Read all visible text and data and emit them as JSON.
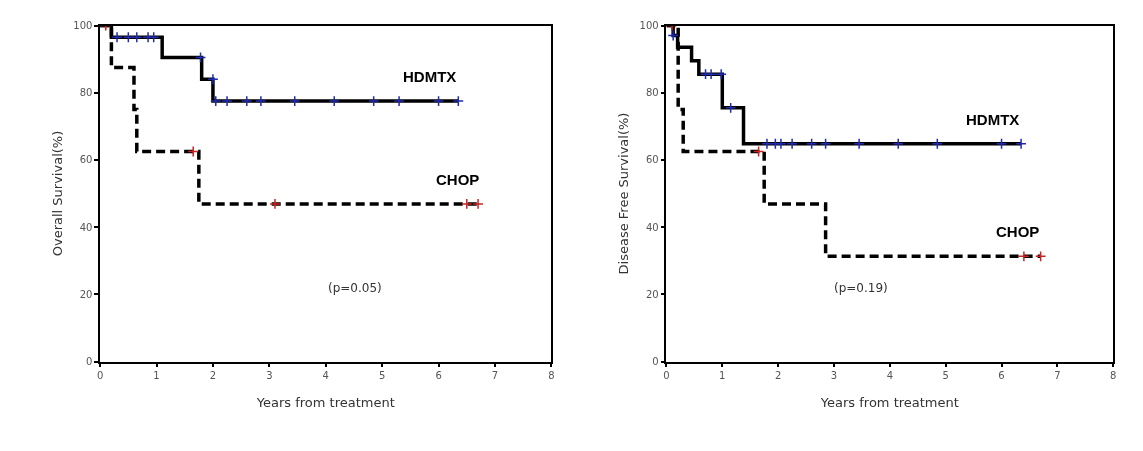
{
  "chart_data": [
    {
      "type": "step",
      "xlabel": "Years from treatment",
      "ylabel": "Overall Survival(%)",
      "xlim": [
        0,
        8
      ],
      "xticks": [
        0,
        1,
        2,
        3,
        4,
        5,
        6,
        7,
        8
      ],
      "ylim": [
        0,
        100
      ],
      "yticks": [
        0,
        20,
        40,
        60,
        80,
        100
      ],
      "annotations": [
        "(p=0.05)"
      ],
      "series": [
        {
          "name": "HDMTX",
          "color": "#000000",
          "line_style": "solid",
          "marker": "none",
          "x": [
            0,
            0.2,
            1.1,
            1.8,
            2.0,
            6.35
          ],
          "values": [
            100,
            96.5,
            90.5,
            84,
            77.5,
            77.5
          ]
        },
        {
          "name": "CHOP",
          "color": "#000000",
          "line_style": "dashed",
          "marker": "none",
          "x": [
            0,
            0.2,
            0.6,
            0.65,
            1.75,
            6.75
          ],
          "values": [
            100,
            87.5,
            75,
            62.5,
            46.9,
            46.9
          ]
        },
        {
          "type": "scatter",
          "color": "#1f2ab0",
          "marker": "cross",
          "x": [
            0.3,
            0.5,
            0.65,
            0.85,
            0.95,
            1.78,
            2.0,
            2.05,
            2.25,
            2.6,
            2.85,
            3.45,
            4.15,
            4.85,
            5.3,
            6.0,
            6.35
          ],
          "values": [
            96.5,
            96.5,
            96.5,
            96.5,
            96.5,
            90.5,
            84,
            77.5,
            77.5,
            77.5,
            77.5,
            77.5,
            77.5,
            77.5,
            77.5,
            77.5,
            77.5
          ]
        },
        {
          "type": "scatter",
          "color": "#cc2222",
          "marker": "cross",
          "x": [
            0.1,
            1.65,
            3.1,
            6.5,
            6.7
          ],
          "values": [
            100,
            62.5,
            46.9,
            46.9,
            46.9
          ]
        }
      ]
    },
    {
      "type": "step",
      "xlabel": "Years from treatment",
      "ylabel": "Disease Free Survival(%)",
      "xlim": [
        0,
        8
      ],
      "xticks": [
        0,
        1,
        2,
        3,
        4,
        5,
        6,
        7,
        8
      ],
      "ylim": [
        0,
        100
      ],
      "yticks": [
        0,
        20,
        40,
        60,
        80,
        100
      ],
      "annotations": [
        "(p=0.19)"
      ],
      "series": [
        {
          "name": "HDMTX",
          "color": "#000000",
          "line_style": "solid",
          "marker": "none",
          "x": [
            0,
            0.12,
            0.2,
            0.45,
            0.58,
            1.0,
            1.38,
            6.35
          ],
          "values": [
            100,
            97,
            93.5,
            89.5,
            85.5,
            75.5,
            64.8,
            64.8
          ]
        },
        {
          "name": "CHOP",
          "color": "#000000",
          "line_style": "dashed",
          "marker": "none",
          "x": [
            0,
            0.21,
            0.3,
            1.75,
            2.85,
            6.7
          ],
          "values": [
            100,
            75,
            62.5,
            46.9,
            31.3,
            31.3
          ]
        },
        {
          "type": "scatter",
          "color": "#1f2ab0",
          "marker": "cross",
          "x": [
            0.12,
            0.7,
            0.8,
            0.98,
            1.15,
            1.8,
            1.95,
            2.05,
            2.25,
            2.6,
            2.85,
            3.45,
            4.15,
            4.85,
            6.0,
            6.35
          ],
          "values": [
            97,
            85.5,
            85.5,
            85.5,
            75.5,
            64.8,
            64.8,
            64.8,
            64.8,
            64.8,
            64.8,
            64.8,
            64.8,
            64.8,
            64.8,
            64.8
          ]
        },
        {
          "type": "scatter",
          "color": "#cc2222",
          "marker": "cross",
          "x": [
            0.1,
            1.65,
            6.4,
            6.7
          ],
          "values": [
            100,
            62.5,
            31.3,
            31.3
          ]
        }
      ]
    }
  ]
}
